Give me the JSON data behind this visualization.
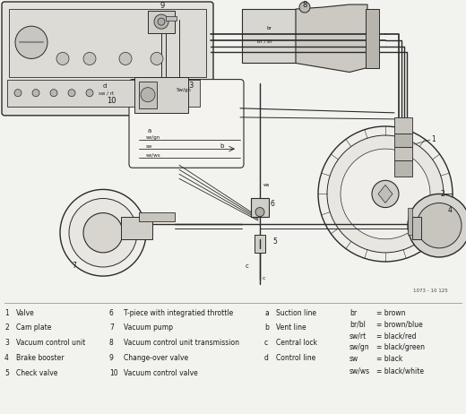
{
  "bg_color": "#f2f2ee",
  "line_color": "#2a2a2a",
  "legend_col1": [
    [
      "1",
      "Valve"
    ],
    [
      "2",
      "Cam plate"
    ],
    [
      "3",
      "Vacuum control unit"
    ],
    [
      "4",
      "Brake booster"
    ],
    [
      "5",
      "Check valve"
    ]
  ],
  "legend_col2": [
    [
      "6",
      "T-piece with integratied throttle"
    ],
    [
      "7",
      "Vacuum pump"
    ],
    [
      "8",
      "Vacuum control unit transmission"
    ],
    [
      "9",
      "Change-over valve"
    ],
    [
      "10",
      "Vacuum control valve"
    ]
  ],
  "legend_col3": [
    [
      "a",
      "Suction line"
    ],
    [
      "b",
      "Vent line"
    ],
    [
      "c",
      "Central lock"
    ],
    [
      "d",
      "Control line"
    ]
  ],
  "legend_col4": [
    [
      "br",
      "= brown"
    ],
    [
      "br/bl",
      "= brown/blue"
    ],
    [
      "sw/rt",
      "= black/red"
    ],
    [
      "sw/gn",
      "= black/green"
    ],
    [
      "sw",
      "= black"
    ],
    [
      "sw/ws",
      "= black/white"
    ]
  ],
  "ref_number": "1073 - 10 125"
}
